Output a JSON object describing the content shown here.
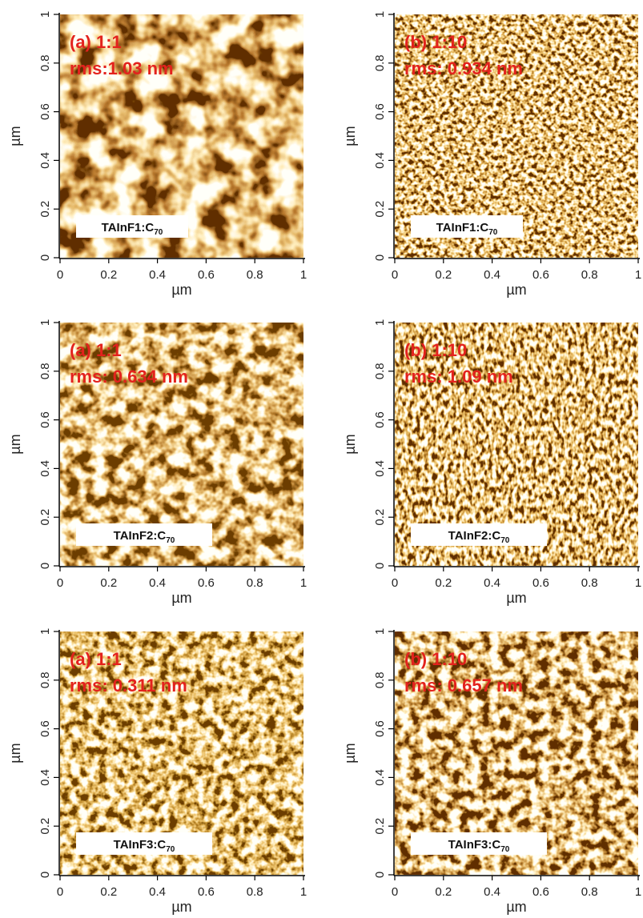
{
  "chart_data": [
    {
      "type": "image",
      "annotations": [
        "(a) 1:1",
        "rms:1.03 nm"
      ],
      "label": {
        "text": "TAInF1:C",
        "subscript": "70"
      },
      "x_label": "µm",
      "y_label": "µm",
      "xlim": [
        0,
        1
      ],
      "ylim": [
        0,
        1
      ],
      "xticks": [
        0,
        0.2,
        0.4,
        0.6,
        0.8,
        1
      ],
      "yticks": [
        0,
        0.2,
        0.4,
        0.6,
        0.8,
        1
      ]
    },
    {
      "type": "image",
      "annotations": [
        "(b) 1:10",
        "rms: 0.934 nm"
      ],
      "label": {
        "text": "TAInF1:C",
        "subscript": "70"
      },
      "x_label": "µm",
      "y_label": "µm",
      "xlim": [
        0,
        1
      ],
      "ylim": [
        0,
        1
      ],
      "xticks": [
        0,
        0.2,
        0.4,
        0.6,
        0.8,
        1
      ],
      "yticks": [
        0,
        0.2,
        0.4,
        0.6,
        0.8,
        1
      ]
    },
    {
      "type": "image",
      "annotations": [
        "(a) 1:1",
        "rms: 0.634 nm"
      ],
      "label": {
        "text": "TAInF2:C",
        "subscript": "70"
      },
      "x_label": "µm",
      "y_label": "µm",
      "xlim": [
        0,
        1
      ],
      "ylim": [
        0,
        1
      ],
      "xticks": [
        0,
        0.2,
        0.4,
        0.6,
        0.8,
        1
      ],
      "yticks": [
        0,
        0.2,
        0.4,
        0.6,
        0.8,
        1
      ]
    },
    {
      "type": "image",
      "annotations": [
        "(b) 1:10",
        "rms: 1.09 nm"
      ],
      "label": {
        "text": "TAInF2:C",
        "subscript": "70"
      },
      "x_label": "µm",
      "y_label": "µm",
      "xlim": [
        0,
        1
      ],
      "ylim": [
        0,
        1
      ],
      "xticks": [
        0,
        0.2,
        0.4,
        0.6,
        0.8,
        1
      ],
      "yticks": [
        0,
        0.2,
        0.4,
        0.6,
        0.8,
        1
      ]
    },
    {
      "type": "image",
      "annotations": [
        "(a) 1:1",
        "rms: 0.311 nm"
      ],
      "label": {
        "text": "TAInF3:C",
        "subscript": "70"
      },
      "x_label": "µm",
      "y_label": "µm",
      "xlim": [
        0,
        1
      ],
      "ylim": [
        0,
        1
      ],
      "xticks": [
        0,
        0.2,
        0.4,
        0.6,
        0.8,
        1
      ],
      "yticks": [
        0,
        0.2,
        0.4,
        0.6,
        0.8,
        1
      ]
    },
    {
      "type": "image",
      "annotations": [
        "(b) 1:10",
        "rms: 0.657 nm"
      ],
      "label": {
        "text": "TAInF3:C",
        "subscript": "70"
      },
      "x_label": "µm",
      "y_label": "µm",
      "xlim": [
        0,
        1
      ],
      "ylim": [
        0,
        1
      ],
      "xticks": [
        0,
        0.2,
        0.4,
        0.6,
        0.8,
        1
      ],
      "yticks": [
        0,
        0.2,
        0.4,
        0.6,
        0.8,
        1
      ]
    }
  ]
}
